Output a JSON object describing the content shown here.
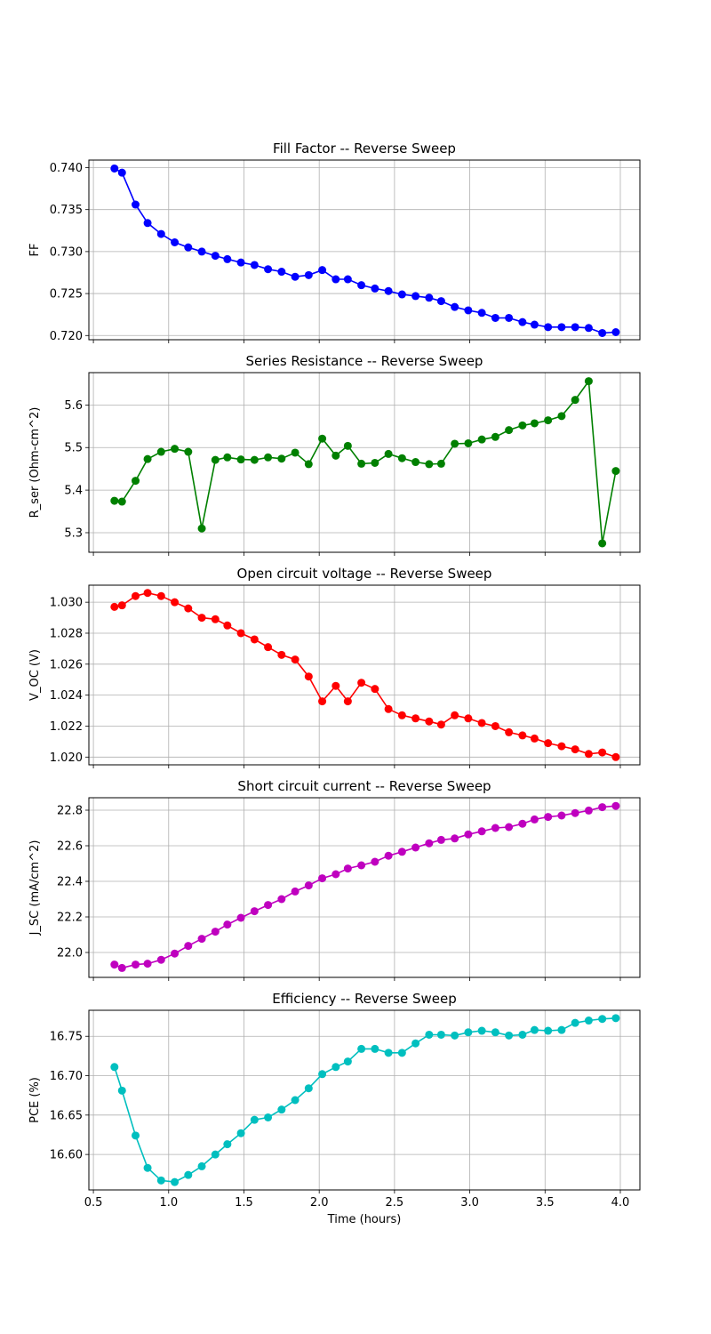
{
  "chart_data": [
    {
      "type": "line",
      "title": "Fill Factor -- Reverse Sweep",
      "xlabel": "",
      "ylabel": "FF",
      "color": "#0000ff",
      "xlim": [
        0.47,
        4.13
      ],
      "ylim": [
        0.7195,
        0.7409
      ],
      "xticks": [
        0.5,
        1.0,
        1.5,
        2.0,
        2.5,
        3.0,
        3.5,
        4.0
      ],
      "xtick_labels": [],
      "yticks": [
        0.72,
        0.725,
        0.73,
        0.735,
        0.74
      ],
      "ytick_labels": [
        "0.720",
        "0.725",
        "0.730",
        "0.735",
        "0.740"
      ],
      "grid": true,
      "x": [
        0.64,
        0.69,
        0.78,
        0.86,
        0.95,
        1.04,
        1.13,
        1.22,
        1.31,
        1.39,
        1.48,
        1.57,
        1.66,
        1.75,
        1.84,
        1.93,
        2.02,
        2.11,
        2.19,
        2.28,
        2.37,
        2.46,
        2.55,
        2.64,
        2.73,
        2.81,
        2.9,
        2.99,
        3.08,
        3.17,
        3.26,
        3.35,
        3.43,
        3.52,
        3.61,
        3.7,
        3.79,
        3.88,
        3.97
      ],
      "y": [
        0.7399,
        0.7394,
        0.7356,
        0.7334,
        0.7321,
        0.7311,
        0.7305,
        0.73,
        0.7295,
        0.7291,
        0.7287,
        0.7284,
        0.7279,
        0.7276,
        0.727,
        0.7272,
        0.7278,
        0.7267,
        0.7267,
        0.726,
        0.7256,
        0.7253,
        0.7249,
        0.7247,
        0.7245,
        0.7241,
        0.7234,
        0.723,
        0.7227,
        0.7221,
        0.7221,
        0.7216,
        0.7213,
        0.721,
        0.721,
        0.721,
        0.7209,
        0.7203,
        0.7204
      ]
    },
    {
      "type": "line",
      "title": "Series Resistance -- Reverse Sweep",
      "xlabel": "",
      "ylabel": "R_ser (Ohm-cm^2)",
      "color": "#008000",
      "xlim": [
        0.47,
        4.13
      ],
      "ylim": [
        5.254,
        5.676
      ],
      "xticks": [
        0.5,
        1.0,
        1.5,
        2.0,
        2.5,
        3.0,
        3.5,
        4.0
      ],
      "xtick_labels": [],
      "yticks": [
        5.3,
        5.4,
        5.5,
        5.6
      ],
      "ytick_labels": [
        "5.3",
        "5.4",
        "5.5",
        "5.6"
      ],
      "grid": true,
      "x": [
        0.64,
        0.69,
        0.78,
        0.86,
        0.95,
        1.04,
        1.13,
        1.22,
        1.31,
        1.39,
        1.48,
        1.57,
        1.66,
        1.75,
        1.84,
        1.93,
        2.02,
        2.11,
        2.19,
        2.28,
        2.37,
        2.46,
        2.55,
        2.64,
        2.73,
        2.81,
        2.9,
        2.99,
        3.08,
        3.17,
        3.26,
        3.35,
        3.43,
        3.52,
        3.61,
        3.7,
        3.79,
        3.88,
        3.97
      ],
      "y": [
        5.375,
        5.373,
        5.422,
        5.473,
        5.49,
        5.497,
        5.49,
        5.31,
        5.471,
        5.477,
        5.472,
        5.471,
        5.477,
        5.474,
        5.488,
        5.461,
        5.521,
        5.481,
        5.504,
        5.462,
        5.464,
        5.485,
        5.475,
        5.466,
        5.461,
        5.462,
        5.509,
        5.51,
        5.519,
        5.525,
        5.541,
        5.552,
        5.557,
        5.564,
        5.574,
        5.612,
        5.656,
        5.275,
        5.445
      ]
    },
    {
      "type": "line",
      "title": "Open circuit voltage -- Reverse Sweep",
      "xlabel": "",
      "ylabel": "V_OC (V)",
      "color": "#ff0000",
      "xlim": [
        0.47,
        4.13
      ],
      "ylim": [
        1.0195,
        1.0311
      ],
      "xticks": [
        0.5,
        1.0,
        1.5,
        2.0,
        2.5,
        3.0,
        3.5,
        4.0
      ],
      "xtick_labels": [],
      "yticks": [
        1.02,
        1.022,
        1.024,
        1.026,
        1.028,
        1.03
      ],
      "ytick_labels": [
        "1.020",
        "1.022",
        "1.024",
        "1.026",
        "1.028",
        "1.030"
      ],
      "grid": true,
      "x": [
        0.64,
        0.69,
        0.78,
        0.86,
        0.95,
        1.04,
        1.13,
        1.22,
        1.31,
        1.39,
        1.48,
        1.57,
        1.66,
        1.75,
        1.84,
        1.93,
        2.02,
        2.11,
        2.19,
        2.28,
        2.37,
        2.46,
        2.55,
        2.64,
        2.73,
        2.81,
        2.9,
        2.99,
        3.08,
        3.17,
        3.26,
        3.35,
        3.43,
        3.52,
        3.61,
        3.7,
        3.79,
        3.88,
        3.97
      ],
      "y": [
        1.0297,
        1.0298,
        1.0304,
        1.0306,
        1.0304,
        1.03,
        1.0296,
        1.029,
        1.0289,
        1.0285,
        1.028,
        1.0276,
        1.0271,
        1.0266,
        1.0263,
        1.0252,
        1.0236,
        1.0246,
        1.0236,
        1.0248,
        1.0244,
        1.0231,
        1.0227,
        1.0225,
        1.0223,
        1.0221,
        1.0227,
        1.0225,
        1.0222,
        1.022,
        1.0216,
        1.0214,
        1.0212,
        1.0209,
        1.0207,
        1.0205,
        1.0202,
        1.0203,
        1.02
      ]
    },
    {
      "type": "line",
      "title": "Short circuit current -- Reverse Sweep",
      "xlabel": "",
      "ylabel": "J_SC (mA/cm^2)",
      "color": "#bf00bf",
      "xlim": [
        0.47,
        4.13
      ],
      "ylim": [
        21.86,
        22.87
      ],
      "xticks": [
        0.5,
        1.0,
        1.5,
        2.0,
        2.5,
        3.0,
        3.5,
        4.0
      ],
      "xtick_labels": [],
      "yticks": [
        22.0,
        22.2,
        22.4,
        22.6,
        22.8
      ],
      "ytick_labels": [
        "22.0",
        "22.2",
        "22.4",
        "22.6",
        "22.8"
      ],
      "grid": true,
      "x": [
        0.64,
        0.69,
        0.78,
        0.86,
        0.95,
        1.04,
        1.13,
        1.22,
        1.31,
        1.39,
        1.48,
        1.57,
        1.66,
        1.75,
        1.84,
        1.93,
        2.02,
        2.11,
        2.19,
        2.28,
        2.37,
        2.46,
        2.55,
        2.64,
        2.73,
        2.81,
        2.9,
        2.99,
        3.08,
        3.17,
        3.26,
        3.35,
        3.43,
        3.52,
        3.61,
        3.7,
        3.79,
        3.88,
        3.97
      ],
      "y": [
        21.932,
        21.913,
        21.932,
        21.937,
        21.959,
        21.994,
        22.037,
        22.077,
        22.117,
        22.157,
        22.195,
        22.232,
        22.267,
        22.3,
        22.343,
        22.377,
        22.417,
        22.44,
        22.472,
        22.49,
        22.51,
        22.544,
        22.566,
        22.59,
        22.614,
        22.633,
        22.641,
        22.664,
        22.681,
        22.7,
        22.705,
        22.724,
        22.748,
        22.762,
        22.77,
        22.784,
        22.798,
        22.817,
        22.824
      ]
    },
    {
      "type": "line",
      "title": "Efficiency -- Reverse Sweep",
      "xlabel": "Time (hours)",
      "ylabel": "PCE (%)",
      "color": "#00bfbf",
      "xlim": [
        0.47,
        4.13
      ],
      "ylim": [
        16.555,
        16.783
      ],
      "xticks": [
        0.5,
        1.0,
        1.5,
        2.0,
        2.5,
        3.0,
        3.5,
        4.0
      ],
      "xtick_labels": [
        "0.5",
        "1.0",
        "1.5",
        "2.0",
        "2.5",
        "3.0",
        "3.5",
        "4.0"
      ],
      "yticks": [
        16.6,
        16.65,
        16.7,
        16.75
      ],
      "ytick_labels": [
        "16.60",
        "16.65",
        "16.70",
        "16.75"
      ],
      "grid": true,
      "x": [
        0.64,
        0.69,
        0.78,
        0.86,
        0.95,
        1.04,
        1.13,
        1.22,
        1.31,
        1.39,
        1.48,
        1.57,
        1.66,
        1.75,
        1.84,
        1.93,
        2.02,
        2.11,
        2.19,
        2.28,
        2.37,
        2.46,
        2.55,
        2.64,
        2.73,
        2.81,
        2.9,
        2.99,
        3.08,
        3.17,
        3.26,
        3.35,
        3.43,
        3.52,
        3.61,
        3.7,
        3.79,
        3.88,
        3.97
      ],
      "y": [
        16.711,
        16.681,
        16.624,
        16.583,
        16.567,
        16.565,
        16.574,
        16.585,
        16.6,
        16.613,
        16.627,
        16.644,
        16.647,
        16.657,
        16.669,
        16.684,
        16.702,
        16.711,
        16.718,
        16.734,
        16.734,
        16.729,
        16.729,
        16.741,
        16.752,
        16.752,
        16.751,
        16.755,
        16.757,
        16.755,
        16.751,
        16.752,
        16.758,
        16.757,
        16.758,
        16.767,
        16.77,
        16.772,
        16.773
      ]
    }
  ]
}
